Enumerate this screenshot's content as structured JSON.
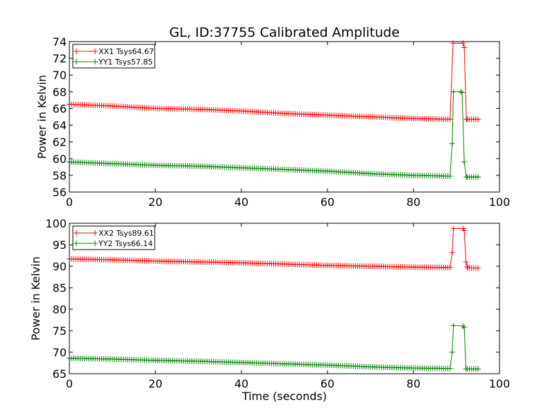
{
  "figure": {
    "title": "GL, ID:37755 Calibrated Amplitude"
  },
  "chart_data": [
    {
      "type": "line",
      "xlabel": "",
      "ylabel": "Power in Kelvin",
      "xlim": [
        0,
        100
      ],
      "ylim": [
        56,
        74
      ],
      "xticks": [
        0,
        20,
        40,
        60,
        80,
        100
      ],
      "yticks": [
        56,
        58,
        60,
        62,
        64,
        66,
        68,
        70,
        72,
        74
      ],
      "grid": false,
      "legend_position": "top-left",
      "marker": "plus",
      "series": [
        {
          "name": "XX1 Tsys64.67",
          "color": "#ff0000",
          "points": [
            [
              0,
              66.5
            ],
            [
              10,
              66.3
            ],
            [
              20,
              66.0
            ],
            [
              30,
              65.9
            ],
            [
              40,
              65.7
            ],
            [
              50,
              65.4
            ],
            [
              60,
              65.2
            ],
            [
              70,
              65.0
            ],
            [
              80,
              64.8
            ],
            [
              88.5,
              64.7
            ],
            [
              89.2,
              73.8
            ],
            [
              91.5,
              73.8
            ],
            [
              91.8,
              73.3
            ],
            [
              92.3,
              64.7
            ],
            [
              95,
              64.7
            ]
          ]
        },
        {
          "name": "YY1 Tsys57.85",
          "color": "#008000",
          "points": [
            [
              0,
              59.6
            ],
            [
              10,
              59.4
            ],
            [
              20,
              59.2
            ],
            [
              30,
              59.1
            ],
            [
              40,
              58.9
            ],
            [
              50,
              58.7
            ],
            [
              60,
              58.5
            ],
            [
              70,
              58.2
            ],
            [
              80,
              58.0
            ],
            [
              88.5,
              57.9
            ],
            [
              89.0,
              61.8
            ],
            [
              89.3,
              68.0
            ],
            [
              91.0,
              68.0
            ],
            [
              91.3,
              67.9
            ],
            [
              91.8,
              59.6
            ],
            [
              92.3,
              57.8
            ],
            [
              95,
              57.8
            ]
          ]
        }
      ]
    },
    {
      "type": "line",
      "xlabel": "Time (seconds)",
      "ylabel": "Power in Kelvin",
      "xlim": [
        0,
        100
      ],
      "ylim": [
        65,
        100
      ],
      "xticks": [
        0,
        20,
        40,
        60,
        80,
        100
      ],
      "yticks": [
        65,
        70,
        75,
        80,
        85,
        90,
        95,
        100
      ],
      "grid": false,
      "legend_position": "top-left",
      "marker": "plus",
      "series": [
        {
          "name": "XX2 Tsys89.61",
          "color": "#ff0000",
          "points": [
            [
              0,
              91.7
            ],
            [
              10,
              91.5
            ],
            [
              20,
              91.2
            ],
            [
              30,
              91.0
            ],
            [
              40,
              90.8
            ],
            [
              50,
              90.5
            ],
            [
              60,
              90.2
            ],
            [
              70,
              90.0
            ],
            [
              80,
              89.8
            ],
            [
              88.5,
              89.7
            ],
            [
              89.0,
              93.2
            ],
            [
              89.3,
              98.8
            ],
            [
              91.5,
              98.8
            ],
            [
              91.8,
              98.3
            ],
            [
              92.2,
              91.0
            ],
            [
              92.6,
              89.6
            ],
            [
              95,
              89.6
            ]
          ]
        },
        {
          "name": "YY2 Tsys66.14",
          "color": "#008000",
          "points": [
            [
              0,
              68.6
            ],
            [
              10,
              68.4
            ],
            [
              20,
              68.1
            ],
            [
              30,
              67.9
            ],
            [
              40,
              67.6
            ],
            [
              50,
              67.3
            ],
            [
              60,
              67.0
            ],
            [
              70,
              66.6
            ],
            [
              80,
              66.3
            ],
            [
              88.5,
              66.2
            ],
            [
              89.0,
              70.0
            ],
            [
              89.3,
              76.2
            ],
            [
              91.5,
              76.1
            ],
            [
              91.8,
              75.7
            ],
            [
              92.2,
              66.1
            ],
            [
              95,
              66.1
            ]
          ]
        }
      ]
    }
  ]
}
